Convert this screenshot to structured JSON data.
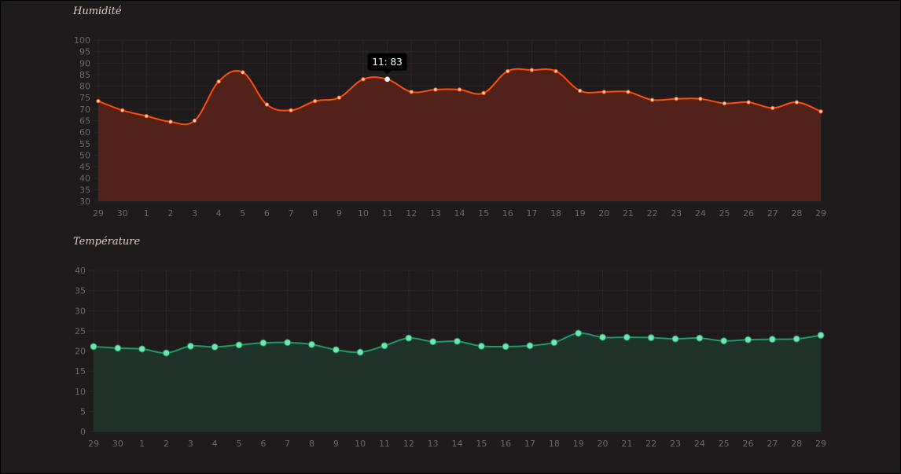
{
  "charts": {
    "humidity": {
      "title": "Humidité"
    },
    "temperature": {
      "title": "Température"
    }
  },
  "tooltip": {
    "text": "11: 83"
  },
  "colors": {
    "background": "#1f1a1b",
    "humidity_line": "#ff4d0a",
    "humidity_fill": "#52221a",
    "temperature_line": "#1f9966",
    "temperature_fill": "#1f332b",
    "temperature_point": "#6fe8b0",
    "tick_text": "#6e6767",
    "grid": "#2b2526"
  },
  "chart_data": [
    {
      "type": "area",
      "title": "Humidité",
      "x": [
        "29",
        "30",
        "1",
        "2",
        "3",
        "4",
        "5",
        "6",
        "7",
        "8",
        "9",
        "10",
        "11",
        "12",
        "13",
        "14",
        "15",
        "16",
        "17",
        "18",
        "19",
        "20",
        "21",
        "22",
        "23",
        "24",
        "25",
        "26",
        "27",
        "28",
        "29"
      ],
      "values": [
        73.5,
        69.5,
        67,
        64.5,
        65,
        82,
        86,
        72,
        69.5,
        73.5,
        75,
        83,
        83,
        77.5,
        78.5,
        78.5,
        77,
        86.5,
        87,
        86.5,
        78,
        77.5,
        77.5,
        74,
        74.5,
        74.5,
        72.5,
        73,
        70.5,
        73,
        69
      ],
      "ylim": [
        30,
        100
      ],
      "yticks": [
        "30",
        "35",
        "40",
        "45",
        "50",
        "55",
        "60",
        "65",
        "70",
        "75",
        "80",
        "85",
        "90",
        "95",
        "100"
      ],
      "highlight_index": 12
    },
    {
      "type": "area",
      "title": "Température",
      "x": [
        "29",
        "30",
        "1",
        "2",
        "3",
        "4",
        "5",
        "6",
        "7",
        "8",
        "9",
        "10",
        "11",
        "12",
        "13",
        "14",
        "15",
        "16",
        "17",
        "18",
        "19",
        "20",
        "21",
        "22",
        "23",
        "24",
        "25",
        "26",
        "27",
        "28",
        "29"
      ],
      "values": [
        21.1,
        20.7,
        20.5,
        19.5,
        21.2,
        21,
        21.5,
        22,
        22.1,
        21.6,
        20.3,
        19.7,
        21.3,
        23.2,
        22.3,
        22.4,
        21.2,
        21.1,
        21.3,
        22.1,
        24.4,
        23.4,
        23.4,
        23.3,
        23,
        23.2,
        22.5,
        22.8,
        22.9,
        23,
        23.9
      ],
      "ylim": [
        0,
        40
      ],
      "yticks": [
        "0",
        "5",
        "10",
        "15",
        "20",
        "25",
        "30",
        "35",
        "40"
      ]
    }
  ]
}
